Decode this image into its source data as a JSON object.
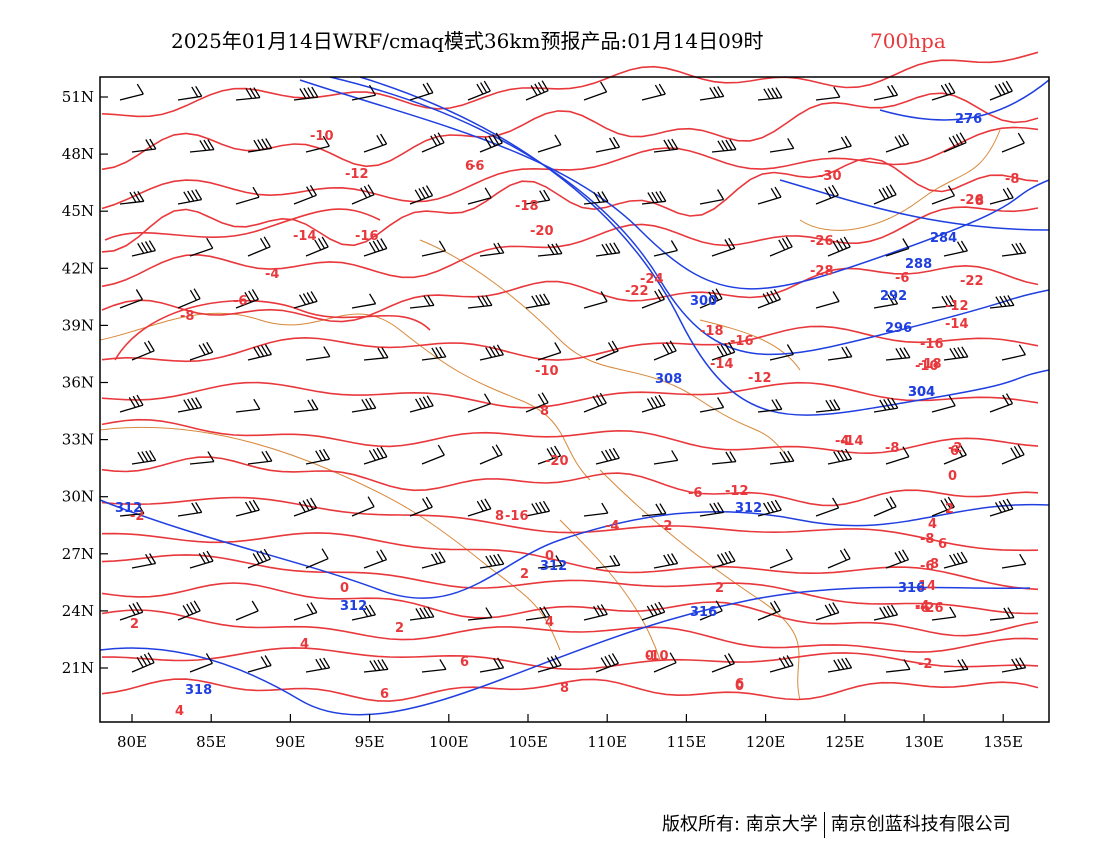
{
  "title": {
    "main": "2025年01月14日WRF/cmaq模式36km预报产品:01月14日09时",
    "level": "700hpa",
    "level_color": "#e8383c"
  },
  "axes": {
    "x_ticks": [
      "80E",
      "85E",
      "90E",
      "95E",
      "100E",
      "105E",
      "110E",
      "115E",
      "120E",
      "125E",
      "130E",
      "135E"
    ],
    "y_ticks": [
      "51N",
      "48N",
      "45N",
      "42N",
      "39N",
      "36N",
      "33N",
      "30N",
      "27N",
      "24N",
      "21N"
    ]
  },
  "colors": {
    "temperature": "#e8383c",
    "geopotential_height": "#1f3fe0",
    "boundaries": "#d8883a",
    "wind_barbs": "#000000"
  },
  "temperature_labels": [
    "-10",
    "-12",
    "-14",
    "-16",
    "-18",
    "-20",
    "-22",
    "-24",
    "-26",
    "-28",
    "-30",
    "-18",
    "-16",
    "-14",
    "-12",
    "-10",
    "-8",
    "-6",
    "-4",
    "-2",
    "0",
    "2",
    "4",
    "6",
    "8",
    "-8",
    "-6",
    "-4",
    "-2",
    "0",
    "2",
    "4",
    "6",
    "8",
    "-10",
    "-12",
    "-14",
    "-16",
    "-18",
    "-22",
    "-20",
    "-16",
    "-14",
    "-12",
    "-10",
    "-8",
    "-6",
    "-4",
    "-2",
    "0",
    "2",
    "4",
    "6",
    "8",
    "-8",
    "-6",
    "-4",
    "-2",
    "0",
    "2",
    "4",
    "6",
    "8",
    "14",
    "-6",
    "-6",
    "8",
    "6",
    "6",
    "0",
    "2",
    "-26",
    "-26"
  ],
  "height_labels": [
    "276",
    "284",
    "288",
    "292",
    "296",
    "300",
    "304",
    "308",
    "312",
    "312",
    "312",
    "312",
    "316",
    "316",
    "318",
    "304"
  ],
  "footer": {
    "copyright": "版权所有: 南京大学",
    "company": "南京创蓝科技有限公司"
  }
}
